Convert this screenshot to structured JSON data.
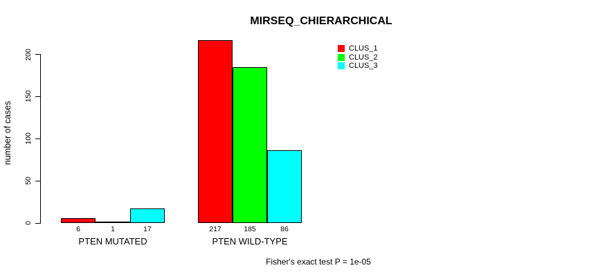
{
  "chart_data": {
    "type": "bar",
    "title": "MIRSEQ_CHIERARCHICAL",
    "ylabel": "number of cases",
    "xlabel": "",
    "annotation": "Fisher's exact test P = 1e-05",
    "series": [
      "CLUS_1",
      "CLUS_2",
      "CLUS_3"
    ],
    "series_colors": [
      "#FF0000",
      "#00FF00",
      "#00FFFF"
    ],
    "categories": [
      "PTEN MUTATED",
      "PTEN WILD-TYPE"
    ],
    "groups": [
      {
        "label": "PTEN MUTATED",
        "values": [
          6,
          1,
          17
        ]
      },
      {
        "label": "PTEN WILD-TYPE",
        "values": [
          217,
          185,
          86
        ]
      }
    ],
    "bar_value_labels": [
      [
        "6",
        "1",
        "17"
      ],
      [
        "217",
        "185",
        "86"
      ]
    ],
    "yticks": [
      0,
      50,
      100,
      150,
      200
    ],
    "ylim": [
      0,
      217
    ],
    "legend_position": "top-right",
    "grid": false,
    "axis_color": "#000000",
    "text_color": "#000000",
    "background_color": "#FFFFFF"
  }
}
